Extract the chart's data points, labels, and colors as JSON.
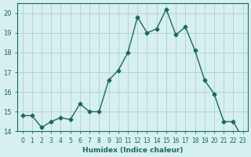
{
  "x": [
    0,
    1,
    2,
    3,
    4,
    5,
    6,
    7,
    8,
    9,
    10,
    11,
    12,
    13,
    14,
    15,
    16,
    17,
    18,
    19,
    20,
    21,
    22,
    23
  ],
  "y": [
    14.8,
    14.8,
    14.2,
    14.5,
    14.7,
    14.6,
    15.4,
    15.0,
    15.0,
    16.6,
    17.1,
    18.0,
    19.8,
    19.0,
    19.2,
    20.2,
    18.9,
    19.3,
    18.1,
    16.6,
    15.9,
    14.5,
    14.5,
    13.6
  ],
  "xlabel": "Humidex (Indice chaleur)",
  "ylabel": "",
  "title": "",
  "bg_color": "#d6efef",
  "grid_color": "#b5d5d5",
  "line_color": "#1a6b5a",
  "marker_color": "#1a6b5a",
  "ylim": [
    14,
    20.5
  ],
  "xlim": [
    -0.5,
    23.5
  ],
  "yticks": [
    14,
    15,
    16,
    17,
    18,
    19,
    20
  ],
  "xticks": [
    0,
    1,
    2,
    3,
    4,
    5,
    6,
    7,
    8,
    9,
    10,
    11,
    12,
    13,
    14,
    15,
    16,
    17,
    18,
    19,
    20,
    21,
    22,
    23
  ]
}
